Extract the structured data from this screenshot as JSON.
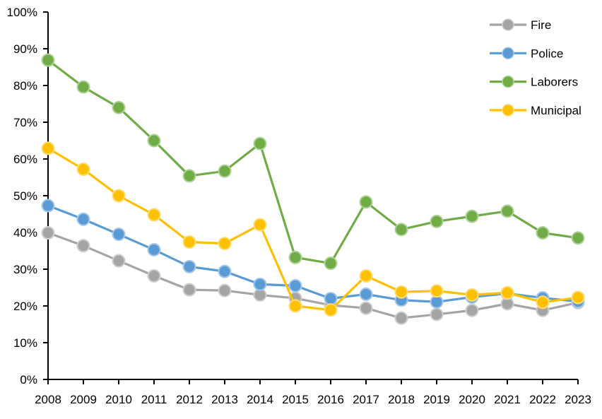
{
  "chart_data": {
    "type": "line",
    "title": "",
    "xlabel": "",
    "ylabel": "",
    "categories": [
      "2008",
      "2009",
      "2010",
      "2011",
      "2012",
      "2013",
      "2014",
      "2015",
      "2016",
      "2017",
      "2018",
      "2019",
      "2020",
      "2021",
      "2022",
      "2023"
    ],
    "series": [
      {
        "name": "Fire",
        "color": "#A5A5A5",
        "values": [
          39.9,
          36.4,
          32.3,
          28.2,
          24.4,
          24.2,
          23.0,
          22.1,
          20.2,
          19.4,
          16.7,
          17.7,
          18.8,
          20.6,
          18.8,
          20.9
        ]
      },
      {
        "name": "Police",
        "color": "#5B9BD5",
        "values": [
          47.3,
          43.6,
          39.5,
          35.3,
          30.7,
          29.4,
          25.9,
          25.5,
          22.0,
          23.2,
          21.6,
          21.1,
          22.4,
          23.4,
          22.2,
          21.2
        ]
      },
      {
        "name": "Laborers",
        "color": "#70AD47",
        "values": [
          86.9,
          79.6,
          74.0,
          65.0,
          55.4,
          56.7,
          64.2,
          33.2,
          31.6,
          48.3,
          40.8,
          43.0,
          44.4,
          45.8,
          39.9,
          38.5
        ]
      },
      {
        "name": "Municipal",
        "color": "#FFC000",
        "values": [
          62.9,
          57.2,
          50.0,
          44.8,
          37.4,
          37.0,
          42.1,
          20.0,
          18.9,
          28.2,
          23.8,
          24.1,
          23.0,
          23.6,
          21.0,
          22.3
        ]
      }
    ],
    "ylim": [
      0,
      100
    ],
    "ytick_step": 10,
    "ytick_suffix": "%",
    "grid": false,
    "legend_position": "top-right-inside",
    "legend_labels": [
      "Fire",
      "Police",
      "Laborers",
      "Municipal"
    ],
    "axis_color": "#000000",
    "marker": "circle"
  }
}
